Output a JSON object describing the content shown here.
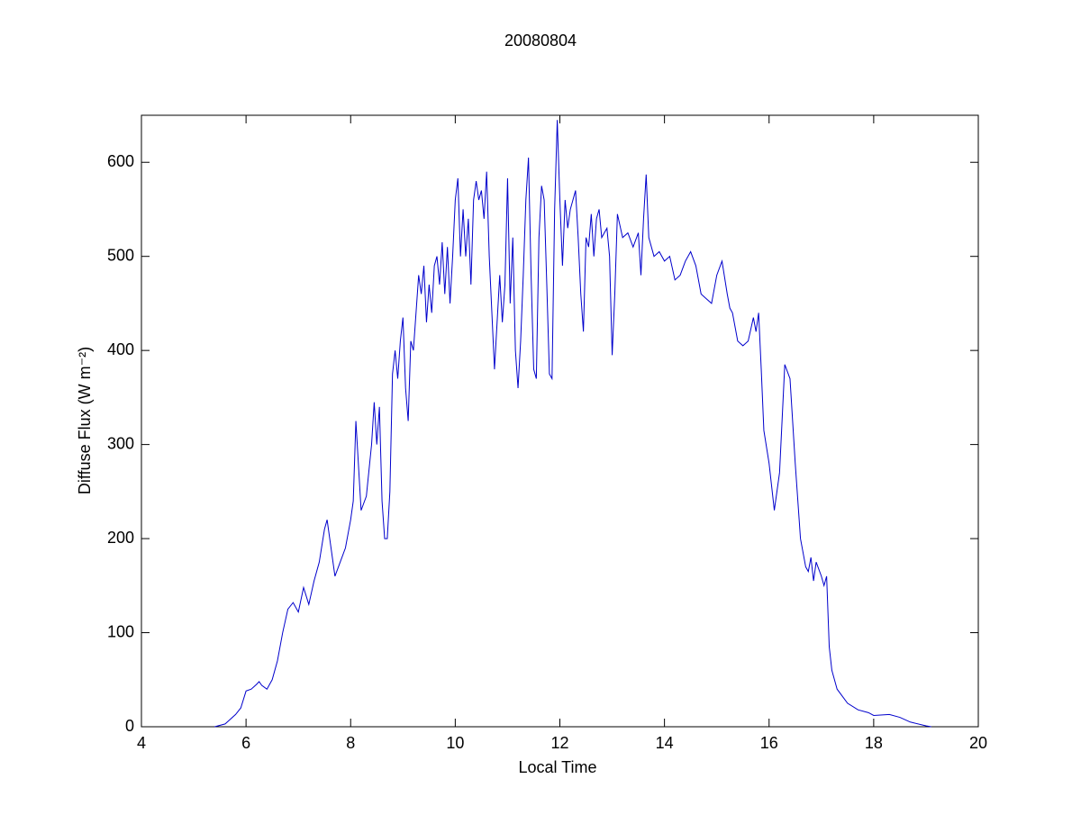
{
  "chart_data": {
    "type": "line",
    "title": "20080804",
    "xlabel": "Local Time",
    "ylabel": "Diffuse Flux (W m⁻²)",
    "x": [
      5.4,
      5.6,
      5.8,
      5.9,
      6.0,
      6.1,
      6.2,
      6.25,
      6.3,
      6.4,
      6.5,
      6.6,
      6.7,
      6.8,
      6.9,
      7.0,
      7.1,
      7.2,
      7.3,
      7.4,
      7.5,
      7.55,
      7.6,
      7.7,
      7.8,
      7.9,
      8.0,
      8.05,
      8.1,
      8.2,
      8.3,
      8.4,
      8.45,
      8.5,
      8.55,
      8.6,
      8.65,
      8.7,
      8.75,
      8.8,
      8.85,
      8.9,
      8.95,
      9.0,
      9.05,
      9.1,
      9.15,
      9.2,
      9.3,
      9.35,
      9.4,
      9.45,
      9.5,
      9.55,
      9.6,
      9.65,
      9.7,
      9.75,
      9.8,
      9.85,
      9.9,
      9.95,
      10.0,
      10.05,
      10.1,
      10.15,
      10.2,
      10.25,
      10.3,
      10.35,
      10.4,
      10.45,
      10.5,
      10.55,
      10.6,
      10.65,
      10.7,
      10.75,
      10.8,
      10.85,
      10.9,
      10.95,
      11.0,
      11.05,
      11.1,
      11.15,
      11.2,
      11.25,
      11.3,
      11.35,
      11.4,
      11.45,
      11.5,
      11.55,
      11.6,
      11.65,
      11.7,
      11.75,
      11.8,
      11.85,
      11.9,
      11.95,
      12.0,
      12.05,
      12.1,
      12.15,
      12.2,
      12.3,
      12.35,
      12.4,
      12.45,
      12.5,
      12.55,
      12.6,
      12.65,
      12.7,
      12.75,
      12.8,
      12.9,
      12.95,
      13.0,
      13.05,
      13.1,
      13.2,
      13.3,
      13.4,
      13.5,
      13.55,
      13.6,
      13.65,
      13.7,
      13.8,
      13.9,
      14.0,
      14.1,
      14.2,
      14.3,
      14.4,
      14.5,
      14.6,
      14.7,
      14.8,
      14.9,
      15.0,
      15.1,
      15.2,
      15.25,
      15.3,
      15.4,
      15.5,
      15.6,
      15.7,
      15.75,
      15.8,
      15.85,
      15.9,
      16.0,
      16.1,
      16.2,
      16.3,
      16.4,
      16.5,
      16.6,
      16.7,
      16.75,
      16.8,
      16.85,
      16.9,
      17.0,
      17.05,
      17.1,
      17.15,
      17.2,
      17.3,
      17.5,
      17.7,
      17.9,
      18.0,
      18.3,
      18.5,
      18.7,
      19.0,
      19.1
    ],
    "series": [
      {
        "color": "#0000cc",
        "values": [
          0,
          3,
          13,
          20,
          38,
          40,
          45,
          48,
          44,
          40,
          50,
          70,
          100,
          125,
          132,
          122,
          148,
          130,
          155,
          175,
          210,
          220,
          200,
          160,
          175,
          190,
          220,
          240,
          325,
          230,
          245,
          300,
          345,
          300,
          340,
          240,
          200,
          200,
          250,
          375,
          400,
          370,
          410,
          435,
          360,
          325,
          410,
          400,
          480,
          460,
          490,
          430,
          470,
          440,
          490,
          500,
          470,
          515,
          460,
          510,
          450,
          500,
          560,
          583,
          500,
          550,
          500,
          540,
          470,
          560,
          580,
          560,
          570,
          540,
          590,
          500,
          440,
          380,
          430,
          480,
          430,
          470,
          583,
          450,
          520,
          400,
          360,
          410,
          480,
          560,
          605,
          480,
          380,
          370,
          520,
          575,
          560,
          470,
          375,
          370,
          550,
          645,
          560,
          490,
          560,
          530,
          550,
          570,
          520,
          460,
          420,
          520,
          510,
          545,
          500,
          540,
          550,
          520,
          530,
          500,
          395,
          460,
          545,
          520,
          525,
          510,
          525,
          480,
          540,
          587,
          520,
          500,
          505,
          495,
          500,
          475,
          480,
          495,
          505,
          490,
          460,
          455,
          450,
          480,
          495,
          460,
          445,
          440,
          410,
          405,
          410,
          435,
          420,
          440,
          380,
          315,
          280,
          230,
          270,
          385,
          370,
          280,
          200,
          170,
          165,
          180,
          155,
          175,
          160,
          150,
          160,
          85,
          60,
          40,
          25,
          18,
          15,
          12,
          13,
          10,
          5,
          1,
          0
        ]
      }
    ],
    "xlim": [
      4,
      20
    ],
    "ylim": [
      0,
      650
    ],
    "xticks": [
      4,
      6,
      8,
      10,
      12,
      14,
      16,
      18,
      20
    ],
    "yticks": [
      0,
      100,
      200,
      300,
      400,
      500,
      600
    ]
  }
}
